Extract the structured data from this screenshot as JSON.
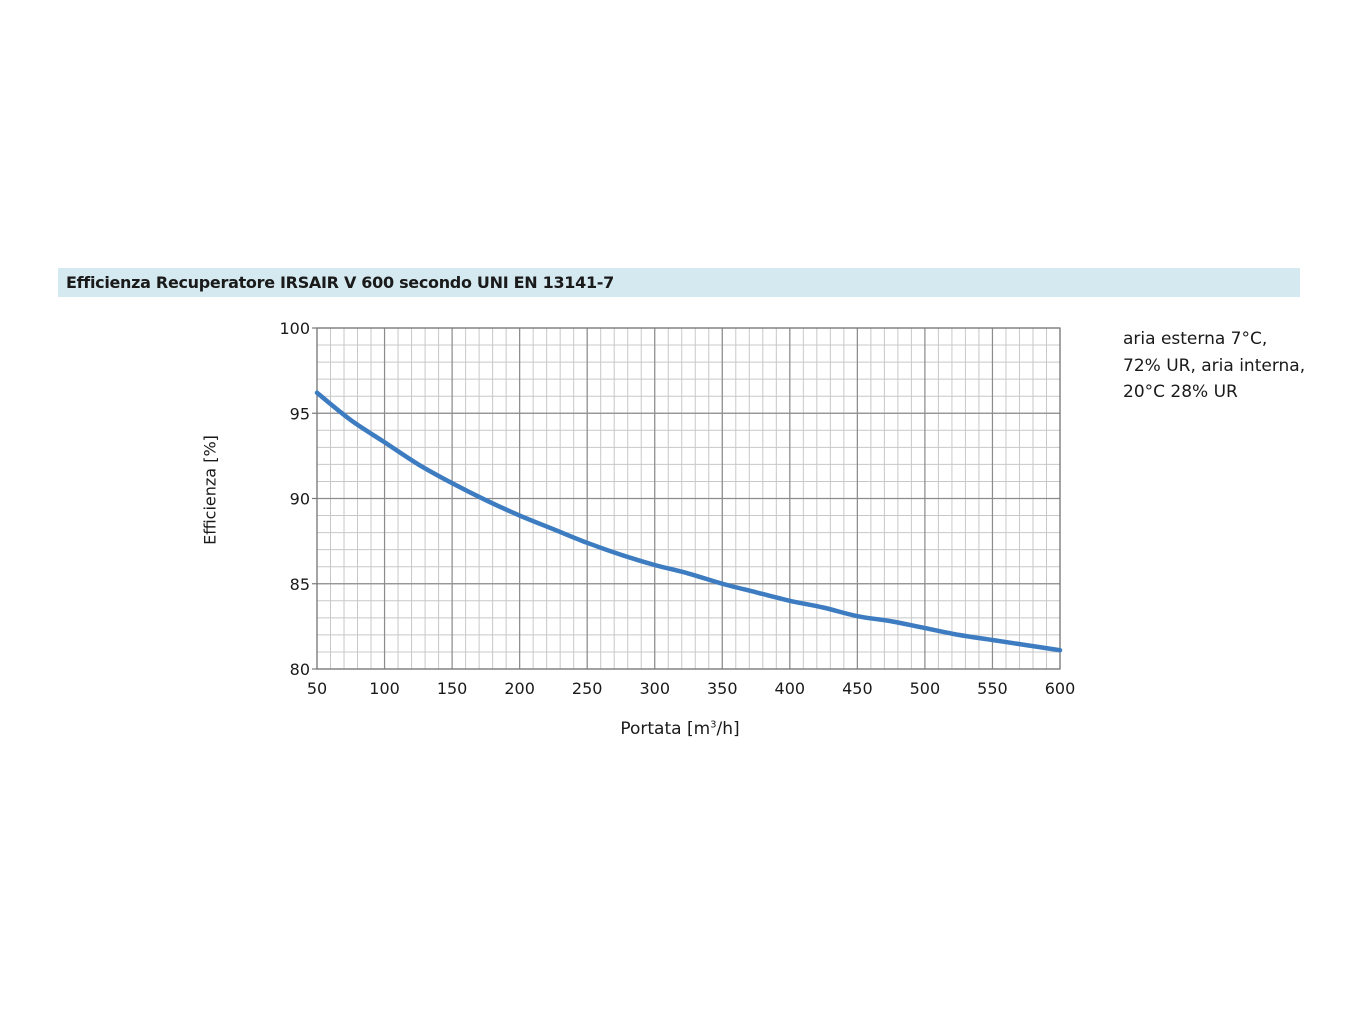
{
  "header": {
    "title": "Efficienza Recuperatore IRSAIR V 600 secondo UNI EN 13141-7"
  },
  "note_lines": [
    "aria esterna 7°C,",
    "72% UR, aria interna,",
    "20°C 28% UR"
  ],
  "chart_data": {
    "type": "line",
    "title": "Efficienza Recuperatore IRSAIR V 600 secondo UNI EN 13141-7",
    "xlabel_pre": "Portata [m",
    "xlabel_sup": "3",
    "xlabel_post": "/h]",
    "ylabel": "Efficienza [%]",
    "xlim": [
      50,
      600
    ],
    "ylim": [
      80,
      100
    ],
    "x_ticks": [
      50,
      100,
      150,
      200,
      250,
      300,
      350,
      400,
      450,
      500,
      550,
      600
    ],
    "y_ticks": [
      80,
      85,
      90,
      95,
      100
    ],
    "x_minor_step": 10,
    "y_minor_step": 1,
    "grid": true,
    "line_color": "#3d7cc0",
    "grid_color": "#c8c8c8",
    "grid_major_color": "#8c8c8c",
    "series": [
      {
        "x": [
          50,
          75,
          100,
          125,
          150,
          175,
          200,
          225,
          250,
          275,
          300,
          325,
          350,
          375,
          400,
          425,
          450,
          475,
          500,
          525,
          550,
          575,
          600
        ],
        "values": [
          96.2,
          94.6,
          93.3,
          92.0,
          90.9,
          89.9,
          89.0,
          88.2,
          87.4,
          86.7,
          86.1,
          85.6,
          85.0,
          84.5,
          84.0,
          83.6,
          83.1,
          82.8,
          82.4,
          82.0,
          81.7,
          81.4,
          81.1
        ]
      }
    ]
  }
}
